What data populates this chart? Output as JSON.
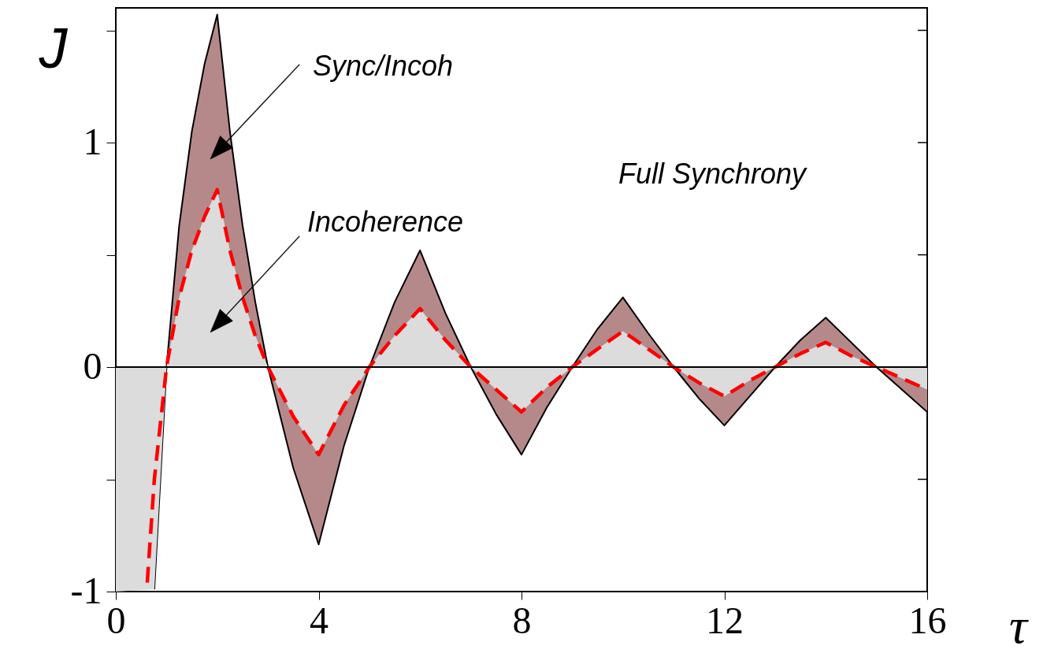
{
  "chart_data": {
    "type": "line",
    "xlabel": "τ",
    "ylabel": "J",
    "xlim": [
      0,
      16
    ],
    "xticks": [
      0,
      4,
      8,
      12,
      16
    ],
    "ylim": [
      -1,
      1.6
    ],
    "yticks": [
      -1,
      {
        "value": -0.5,
        "label": null
      },
      0,
      {
        "value": 0.5,
        "label": null
      },
      1,
      {
        "value": 1.5,
        "label": null
      }
    ],
    "ref_lines": [
      {
        "axis": "y",
        "value": 0,
        "color": "#000000"
      }
    ],
    "annotations": [
      "Sync/Incoh",
      "Incoherence",
      "Full Synchrony"
    ],
    "series": [
      {
        "type": "area",
        "color": "#b5898a",
        "line_style": "solid",
        "x": [
          0.76,
          1,
          1.25,
          1.5,
          1.75,
          2,
          2.25,
          2.5,
          2.75,
          3,
          3.5,
          4,
          4.5,
          5,
          5.5,
          6,
          6.5,
          7,
          7.5,
          8,
          8.5,
          9,
          9.5,
          10,
          10.5,
          11,
          11.5,
          12,
          12.5,
          13,
          13.5,
          14,
          14.5,
          15,
          15.5,
          16
        ],
        "values": [
          -0.99,
          0,
          0.63,
          1.05,
          1.35,
          1.57,
          1.05,
          0.63,
          0.29,
          0,
          -0.45,
          -0.79,
          -0.35,
          0,
          0.29,
          0.52,
          0.24,
          0,
          -0.21,
          -0.39,
          -0.18,
          0,
          0.17,
          0.31,
          0.15,
          0,
          -0.14,
          -0.26,
          -0.13,
          0,
          0.12,
          0.22,
          0.11,
          0,
          -0.1,
          -0.2
        ]
      },
      {
        "type": "area",
        "color": "#dcdcdc",
        "x": [
          0,
          0.76,
          1,
          1.25,
          1.5,
          1.75,
          2,
          2.25,
          2.5,
          2.75,
          3,
          3.5,
          4,
          4.5,
          5,
          5.5,
          6,
          6.5,
          7,
          7.5,
          8,
          8.5,
          9,
          9.5,
          10,
          10.5,
          11,
          11.5,
          12,
          12.5,
          13,
          13.5,
          14,
          14.5,
          15,
          15.5,
          16
        ],
        "values": [
          -1,
          -0.99,
          0,
          0.31,
          0.52,
          0.67,
          0.79,
          0.52,
          0.31,
          0.14,
          0,
          -0.22,
          -0.39,
          -0.17,
          0,
          0.14,
          0.26,
          0.12,
          0,
          -0.1,
          -0.2,
          -0.09,
          0,
          0.08,
          0.16,
          0.08,
          0,
          -0.07,
          -0.13,
          -0.06,
          0,
          0.06,
          0.11,
          0.05,
          0,
          -0.05,
          -0.1
        ]
      },
      {
        "color": "#ff0000",
        "line_style": "dashed",
        "x": [
          0.62,
          0.76,
          1,
          1.25,
          1.5,
          1.75,
          2,
          2.25,
          2.5,
          2.75,
          3,
          3.5,
          4,
          4.5,
          5,
          5.5,
          6,
          6.5,
          7,
          7.5,
          8,
          8.5,
          9,
          9.5,
          10,
          10.5,
          11,
          11.5,
          12,
          12.5,
          13,
          13.5,
          14,
          14.5,
          15,
          15.5,
          16
        ],
        "values": [
          -0.96,
          -0.5,
          0,
          0.31,
          0.52,
          0.67,
          0.79,
          0.52,
          0.31,
          0.14,
          0,
          -0.22,
          -0.39,
          -0.17,
          0,
          0.14,
          0.26,
          0.12,
          0,
          -0.1,
          -0.2,
          -0.09,
          0,
          0.08,
          0.16,
          0.08,
          0,
          -0.07,
          -0.13,
          -0.06,
          0,
          0.06,
          0.11,
          0.05,
          0,
          -0.05,
          -0.1
        ]
      }
    ]
  }
}
